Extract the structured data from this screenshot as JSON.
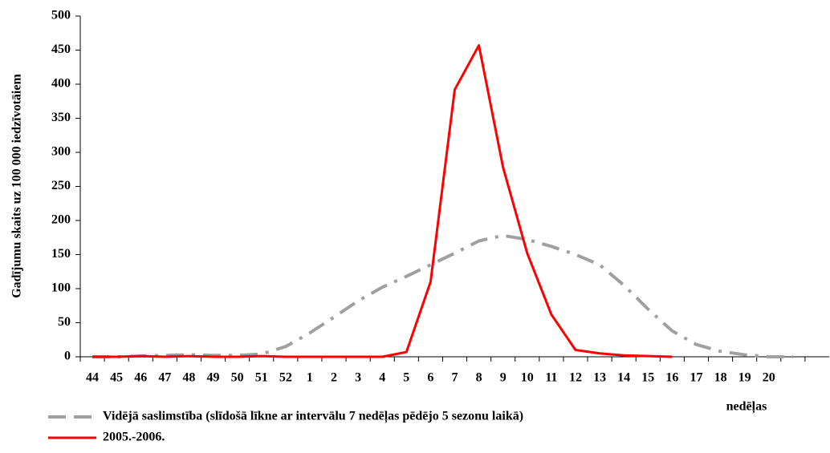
{
  "chart_data": {
    "type": "line",
    "y_label": "Gadījumu skaits uz 100 000 iedzīvotāiem",
    "x_label": "nedēļas",
    "categories": [
      "44",
      "45",
      "46",
      "47",
      "48",
      "49",
      "50",
      "51",
      "52",
      "1",
      "2",
      "3",
      "4",
      "5",
      "6",
      "7",
      "8",
      "9",
      "10",
      "11",
      "12",
      "13",
      "14",
      "15",
      "16",
      "17",
      "18",
      "19",
      "20",
      null,
      null
    ],
    "series": [
      {
        "name": "Vidējā saslimstība (slīdošā līkne ar intervālu 7 nedēļas pēdējo 5 sezonu laikā)",
        "color": "#a0a0a0",
        "dashed": true,
        "values": [
          0,
          0,
          1,
          2,
          3,
          2,
          2,
          4,
          15,
          35,
          58,
          82,
          102,
          118,
          135,
          152,
          170,
          178,
          172,
          162,
          150,
          135,
          105,
          70,
          38,
          18,
          8,
          3,
          0,
          0,
          null
        ]
      },
      {
        "name": "2005.-2006.",
        "color": "#ff0000",
        "dashed": false,
        "values": [
          0,
          0,
          1,
          0,
          1,
          0,
          0,
          1,
          0,
          0,
          0,
          0,
          0,
          7,
          110,
          392,
          457,
          278,
          152,
          62,
          10,
          5,
          2,
          1,
          0,
          null,
          null,
          null,
          null,
          null,
          null
        ]
      }
    ],
    "ylim": [
      0,
      500
    ],
    "yticks": [
      0,
      50,
      100,
      150,
      200,
      250,
      300,
      350,
      400,
      450,
      500
    ]
  }
}
